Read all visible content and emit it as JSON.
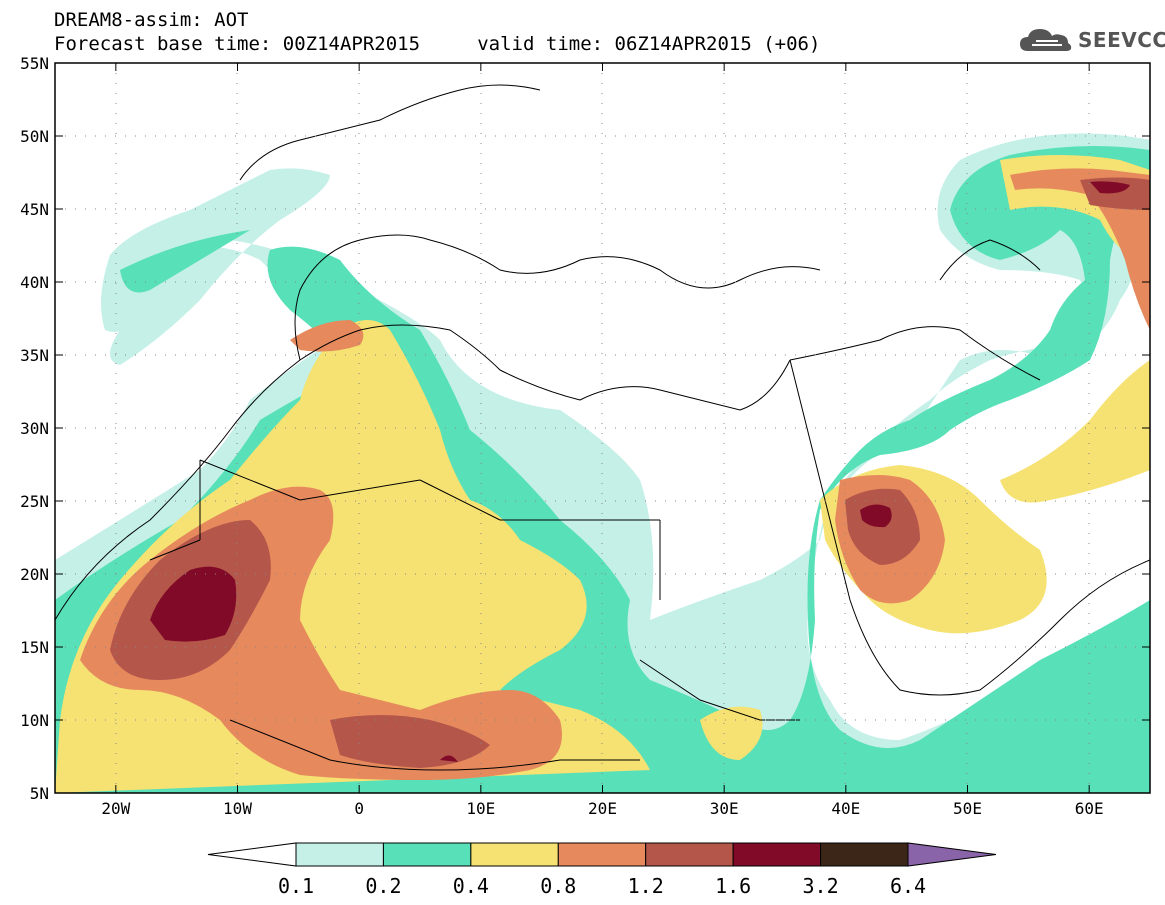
{
  "header": {
    "title_line1": "DREAM8-assim: AOT",
    "title_line2": "Forecast base time: 00Z14APR2015     valid time: 06Z14APR2015 (+06)",
    "logo_text": "SEEVCCC"
  },
  "map": {
    "lat_labels": [
      "55N",
      "50N",
      "45N",
      "40N",
      "35N",
      "30N",
      "25N",
      "20N",
      "15N",
      "10N",
      "5N"
    ],
    "lon_labels": [
      "20W",
      "10W",
      "0",
      "10E",
      "20E",
      "30E",
      "40E",
      "50E",
      "60E"
    ],
    "lat_range": [
      5,
      55
    ],
    "lon_range": [
      -25,
      65
    ],
    "grid": "dotted"
  },
  "colorbar": {
    "tick_labels": [
      "0.1",
      "0.2",
      "0.4",
      "0.8",
      "1.2",
      "1.6",
      "3.2",
      "6.4"
    ],
    "colors": [
      "#ffffff",
      "#c4f0e8",
      "#58e0b8",
      "#f5e272",
      "#e68a5e",
      "#b4564a",
      "#800a28",
      "#3c2618",
      "#8a64a8"
    ]
  },
  "colors": {
    "c01": "#c4f0e8",
    "c02": "#58e0b8",
    "c04": "#f5e272",
    "c08": "#e68a5e",
    "c12": "#b4564a",
    "c16": "#800a28"
  }
}
